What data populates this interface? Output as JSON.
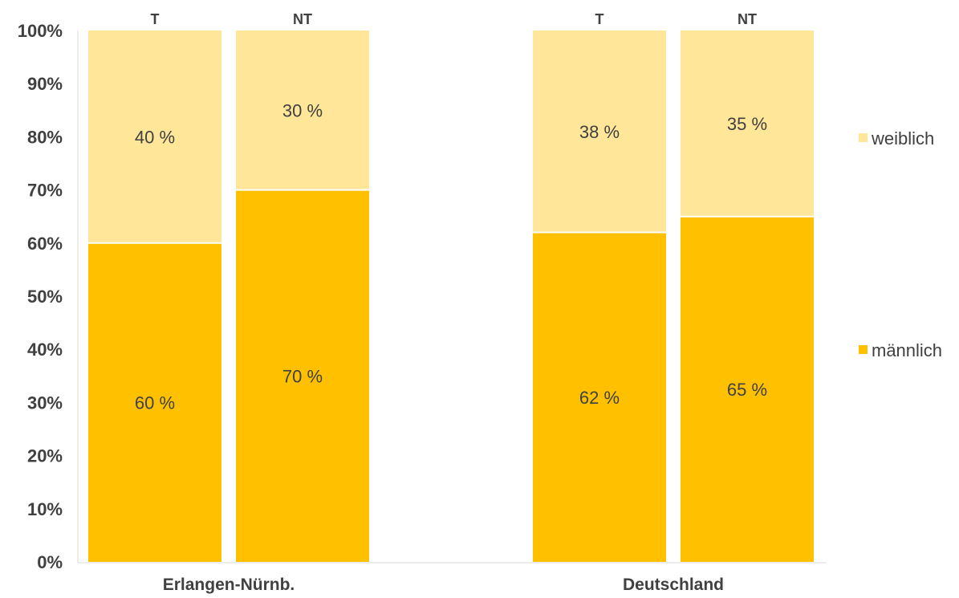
{
  "chart_data": {
    "type": "bar",
    "stacked": true,
    "percent_stacked": true,
    "groups": [
      {
        "label": "Erlangen-Nürnb.",
        "bars": [
          "T",
          "NT"
        ]
      },
      {
        "label": "Deutschland",
        "bars": [
          "T",
          "NT"
        ]
      }
    ],
    "categories": [
      "T",
      "NT",
      "T",
      "NT"
    ],
    "series": [
      {
        "name": "männlich",
        "values": [
          60,
          70,
          62,
          65
        ],
        "labels": [
          "60 %",
          "70 %",
          "62 %",
          "65 %"
        ],
        "color": "#FFC000"
      },
      {
        "name": "weiblich",
        "values": [
          40,
          30,
          38,
          35
        ],
        "labels": [
          "40 %",
          "30 %",
          "38 %",
          "35 %"
        ],
        "color": "#FFE699"
      }
    ],
    "yticks": [
      "0%",
      "10%",
      "20%",
      "30%",
      "40%",
      "50%",
      "60%",
      "70%",
      "80%",
      "90%",
      "100%"
    ],
    "ylim": [
      0,
      100
    ],
    "legend": {
      "position": "right",
      "entries": [
        "weiblich",
        "männlich"
      ]
    },
    "grid": false,
    "title": "",
    "xlabel": "",
    "ylabel": ""
  }
}
